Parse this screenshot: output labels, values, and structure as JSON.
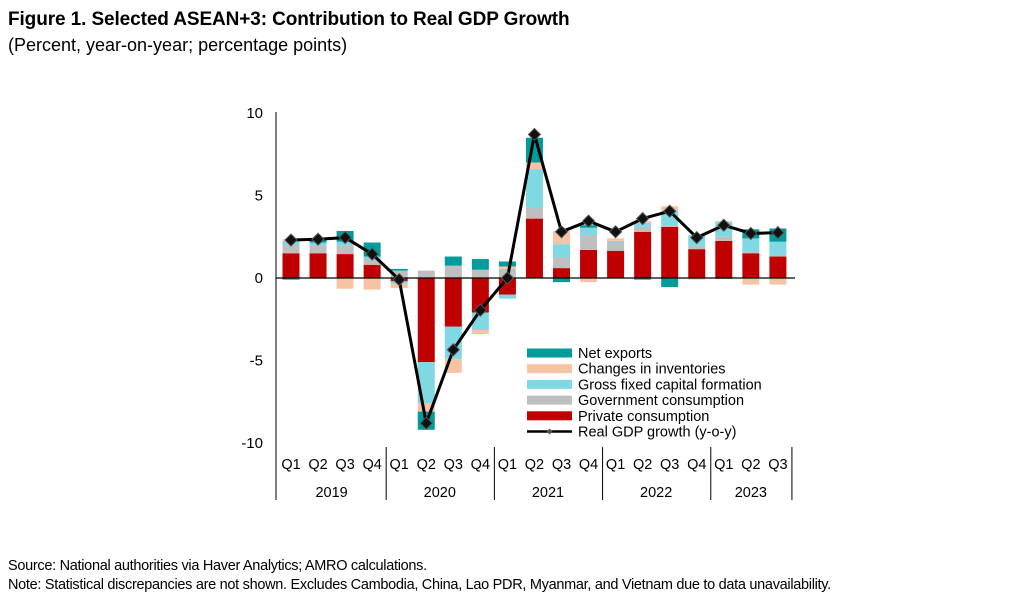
{
  "header": {
    "title": "Figure 1. Selected ASEAN+3: Contribution to Real GDP Growth",
    "subtitle": "(Percent, year-on-year; percentage points)"
  },
  "footer": {
    "source": "Source: National authorities via Haver Analytics; AMRO calculations.",
    "note": "Note: Statistical discrepancies are not shown. Excludes Cambodia, China, Lao PDR, Myanmar, and Vietnam due to data unavailability."
  },
  "chart_data": {
    "type": "bar",
    "stacked": true,
    "title": "Figure 1. Selected ASEAN+3: Contribution to Real GDP Growth",
    "subtitle": "(Percent, year-on-year; percentage points)",
    "xlabel": "",
    "ylabel": "",
    "ylim": [
      -10,
      10
    ],
    "yticks": [
      10,
      5,
      0,
      -5,
      -10
    ],
    "grid": false,
    "legend_position": "bottom-right inside plot",
    "categories": [
      "Q1",
      "Q2",
      "Q3",
      "Q4",
      "Q1",
      "Q2",
      "Q3",
      "Q4",
      "Q1",
      "Q2",
      "Q3",
      "Q4",
      "Q1",
      "Q2",
      "Q3",
      "Q4",
      "Q1",
      "Q2",
      "Q3"
    ],
    "year_groups": [
      {
        "label": "2019",
        "count": 4
      },
      {
        "label": "2020",
        "count": 4
      },
      {
        "label": "2021",
        "count": 4
      },
      {
        "label": "2022",
        "count": 4
      },
      {
        "label": "2023",
        "count": 3
      }
    ],
    "series": [
      {
        "name": "Private consumption",
        "kind": "bar",
        "color": "#C00000",
        "values": [
          1.5,
          1.5,
          1.45,
          0.8,
          -0.2,
          -5.1,
          -2.95,
          -2.1,
          -1.0,
          3.6,
          0.6,
          1.7,
          1.65,
          2.8,
          3.1,
          1.75,
          2.25,
          1.5,
          1.3
        ]
      },
      {
        "name": "Government consumption",
        "kind": "bar",
        "color": "#BFBFBF",
        "values": [
          0.5,
          0.45,
          0.5,
          0.35,
          0.45,
          0.45,
          0.75,
          0.5,
          0.55,
          0.7,
          0.65,
          0.9,
          0.5,
          0.3,
          0.1,
          0.2,
          0.25,
          0.1,
          0.1
        ]
      },
      {
        "name": "Gross fixed capital formation",
        "kind": "bar",
        "color": "#7FD8E2",
        "values": [
          0.25,
          0.2,
          0.25,
          0.15,
          -0.15,
          -2.5,
          -1.95,
          -1.05,
          -0.25,
          2.3,
          0.8,
          0.45,
          0.1,
          0.25,
          0.9,
          0.65,
          0.9,
          0.8,
          0.8
        ]
      },
      {
        "name": "Changes in inventories",
        "kind": "bar",
        "color": "#F8C3A5",
        "values": [
          0.1,
          -0.05,
          -0.65,
          -0.7,
          -0.25,
          -0.5,
          -0.85,
          -0.25,
          0.15,
          0.4,
          0.8,
          -0.25,
          0.15,
          0.1,
          0.25,
          -0.1,
          0.05,
          -0.4,
          -0.4
        ]
      },
      {
        "name": "Net exports",
        "kind": "bar",
        "color": "#009B9B",
        "values": [
          -0.1,
          0.15,
          0.65,
          0.85,
          0.1,
          -1.1,
          0.55,
          0.65,
          0.3,
          1.5,
          -0.25,
          0.15,
          0.0,
          -0.1,
          -0.55,
          0.0,
          -0.05,
          0.55,
          0.8
        ]
      },
      {
        "name": "Real GDP growth (y-o-y)",
        "kind": "line",
        "color": "#000000",
        "values": [
          2.3,
          2.35,
          2.45,
          1.45,
          -0.1,
          -8.8,
          -4.35,
          -1.95,
          0.0,
          8.7,
          2.8,
          3.45,
          2.8,
          3.6,
          4.05,
          2.45,
          3.2,
          2.7,
          2.75
        ]
      }
    ],
    "legend": [
      {
        "label": "Net exports",
        "color": "#009B9B",
        "kind": "bar"
      },
      {
        "label": "Changes in inventories",
        "color": "#F8C3A5",
        "kind": "bar"
      },
      {
        "label": "Gross fixed capital formation",
        "color": "#7FD8E2",
        "kind": "bar"
      },
      {
        "label": "Government consumption",
        "color": "#BFBFBF",
        "kind": "bar"
      },
      {
        "label": "Private consumption",
        "color": "#C00000",
        "kind": "bar"
      },
      {
        "label": "Real GDP growth (y-o-y)",
        "color": "#000000",
        "kind": "line"
      }
    ]
  }
}
